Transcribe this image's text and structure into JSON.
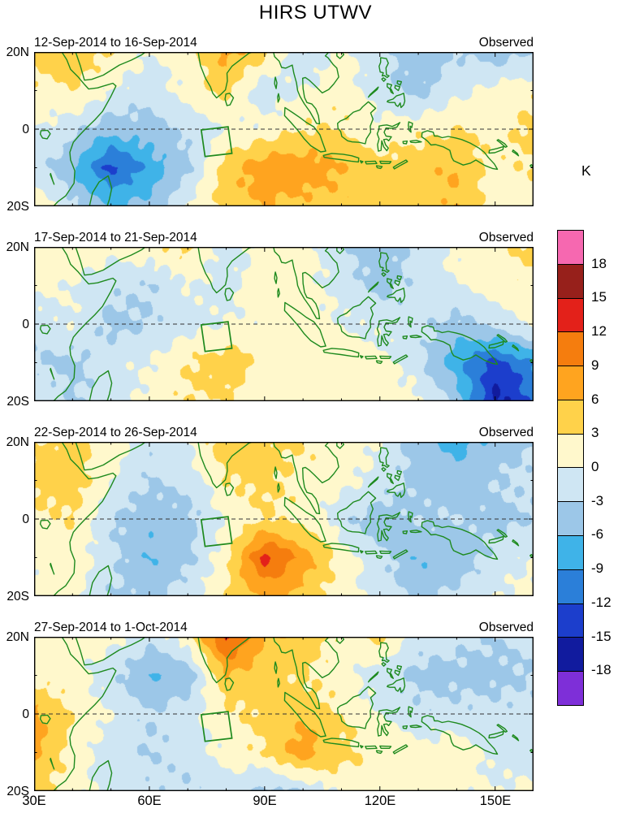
{
  "title": "HIRS UTWV",
  "axes": {
    "lat": [
      "20N",
      "0",
      "20S"
    ],
    "lon": [
      "30E",
      "60E",
      "90E",
      "120E",
      "150E"
    ]
  },
  "panels": [
    {
      "title": "12-Sep-2014 to 16-Sep-2014",
      "tag": "Observed"
    },
    {
      "title": "17-Sep-2014 to 21-Sep-2014",
      "tag": "Observed"
    },
    {
      "title": "22-Sep-2014 to 26-Sep-2014",
      "tag": "Observed"
    },
    {
      "title": "27-Sep-2014 to 1-Oct-2014",
      "tag": "Observed"
    }
  ],
  "colorbar": {
    "unit": "K",
    "ticks": [
      18,
      15,
      12,
      9,
      6,
      3,
      0,
      -3,
      -6,
      -9,
      -12,
      -15,
      -18
    ],
    "colors": [
      "#7E2FD8",
      "#111B9E",
      "#1C3ECC",
      "#2B7FD9",
      "#3FB3E8",
      "#9CC7E8",
      "#CFE6F3",
      "#FFF8CC",
      "#FFD24A",
      "#FFA41F",
      "#F57D0E",
      "#E3211A",
      "#97201B",
      "#F668B0"
    ]
  },
  "chart_data": {
    "type": "heatmap",
    "title": "HIRS UTWV",
    "units": "K",
    "legend_position": "right",
    "x_lon_deg_east": [
      30,
      40,
      50,
      60,
      70,
      80,
      90,
      100,
      110,
      120,
      130,
      140,
      150,
      160
    ],
    "y_lat_deg_north": [
      20,
      10,
      0,
      -10,
      -20
    ],
    "levels": [
      -18,
      -15,
      -12,
      -9,
      -6,
      -3,
      0,
      3,
      6,
      9,
      12,
      15,
      18
    ],
    "region_box": {
      "lon_lat_corners": [
        [
          73.5,
          -0.2
        ],
        [
          80.5,
          0.6
        ],
        [
          81.5,
          -6.3
        ],
        [
          74.5,
          -7.1
        ]
      ]
    },
    "panels": [
      {
        "date_range": "12-Sep-2014 to 16-Sep-2014",
        "values": [
          [
            4,
            5,
            3,
            0,
            2,
            7,
            4,
            -3,
            1,
            -2,
            -5,
            -3,
            -5,
            -3
          ],
          [
            2,
            3,
            0,
            -2,
            1,
            4,
            -2,
            0,
            2,
            -2,
            -4,
            -1,
            1,
            2
          ],
          [
            0,
            -2,
            -5,
            -4,
            -2,
            0,
            1,
            3,
            3,
            1,
            2,
            3,
            2,
            4
          ],
          [
            -1,
            -6,
            -13,
            -8,
            -4,
            5,
            8,
            8,
            6,
            4,
            5,
            6,
            2,
            3
          ],
          [
            2,
            -2,
            -6,
            -5,
            0,
            4,
            6,
            5,
            5,
            5,
            4,
            6,
            1,
            2
          ]
        ]
      },
      {
        "date_range": "17-Sep-2014 to 21-Sep-2014",
        "values": [
          [
            2,
            2,
            1,
            2,
            4,
            -2,
            1,
            2,
            -3,
            -5,
            -2,
            1,
            2,
            4
          ],
          [
            1,
            0,
            -2,
            -3,
            0,
            -1,
            2,
            1,
            -1,
            -4,
            -2,
            0,
            2,
            2
          ],
          [
            -2,
            0,
            -4,
            -3,
            -1,
            0,
            1,
            2,
            0,
            -1,
            -2,
            -4,
            -2,
            1
          ],
          [
            -3,
            -4,
            -1,
            0,
            3,
            5,
            2,
            1,
            2,
            1,
            -2,
            -8,
            -13,
            -9
          ],
          [
            0,
            -3,
            -2,
            1,
            3,
            3,
            1,
            2,
            1,
            2,
            1,
            -4,
            -16,
            -12
          ]
        ]
      },
      {
        "date_range": "22-Sep-2014 to 26-Sep-2014",
        "values": [
          [
            3,
            4,
            2,
            -2,
            0,
            5,
            4,
            3,
            2,
            0,
            -5,
            -7,
            -5,
            -3
          ],
          [
            4,
            5,
            0,
            -3,
            -2,
            3,
            4,
            2,
            1,
            -1,
            -4,
            -5,
            -3,
            -2
          ],
          [
            2,
            3,
            -3,
            -5,
            -4,
            0,
            3,
            2,
            -2,
            -5,
            -3,
            -3,
            -4,
            -3
          ],
          [
            1,
            2,
            -2,
            -6,
            -4,
            2,
            13,
            8,
            2,
            -2,
            -6,
            -5,
            -2,
            0
          ],
          [
            0,
            1,
            -3,
            -4,
            -1,
            3,
            7,
            5,
            1,
            -1,
            -4,
            -2,
            0,
            1
          ]
        ]
      },
      {
        "date_range": "27-Sep-2014 to 1-Oct-2014",
        "values": [
          [
            1,
            2,
            1,
            -2,
            2,
            13,
            6,
            5,
            2,
            4,
            -1,
            -2,
            -3,
            -2
          ],
          [
            2,
            1,
            -2,
            -6,
            -5,
            6,
            4,
            3,
            1,
            -2,
            -4,
            -4,
            -4,
            -3
          ],
          [
            7,
            3,
            0,
            -3,
            -1,
            2,
            4,
            5,
            3,
            0,
            -2,
            -2,
            -2,
            -2
          ],
          [
            7,
            2,
            -2,
            -3,
            -2,
            1,
            3,
            8,
            4,
            2,
            1,
            2,
            -1,
            -2
          ],
          [
            4,
            1,
            -1,
            -2,
            -3,
            -1,
            -4,
            -3,
            1,
            2,
            1,
            1,
            0,
            1
          ]
        ]
      }
    ]
  }
}
